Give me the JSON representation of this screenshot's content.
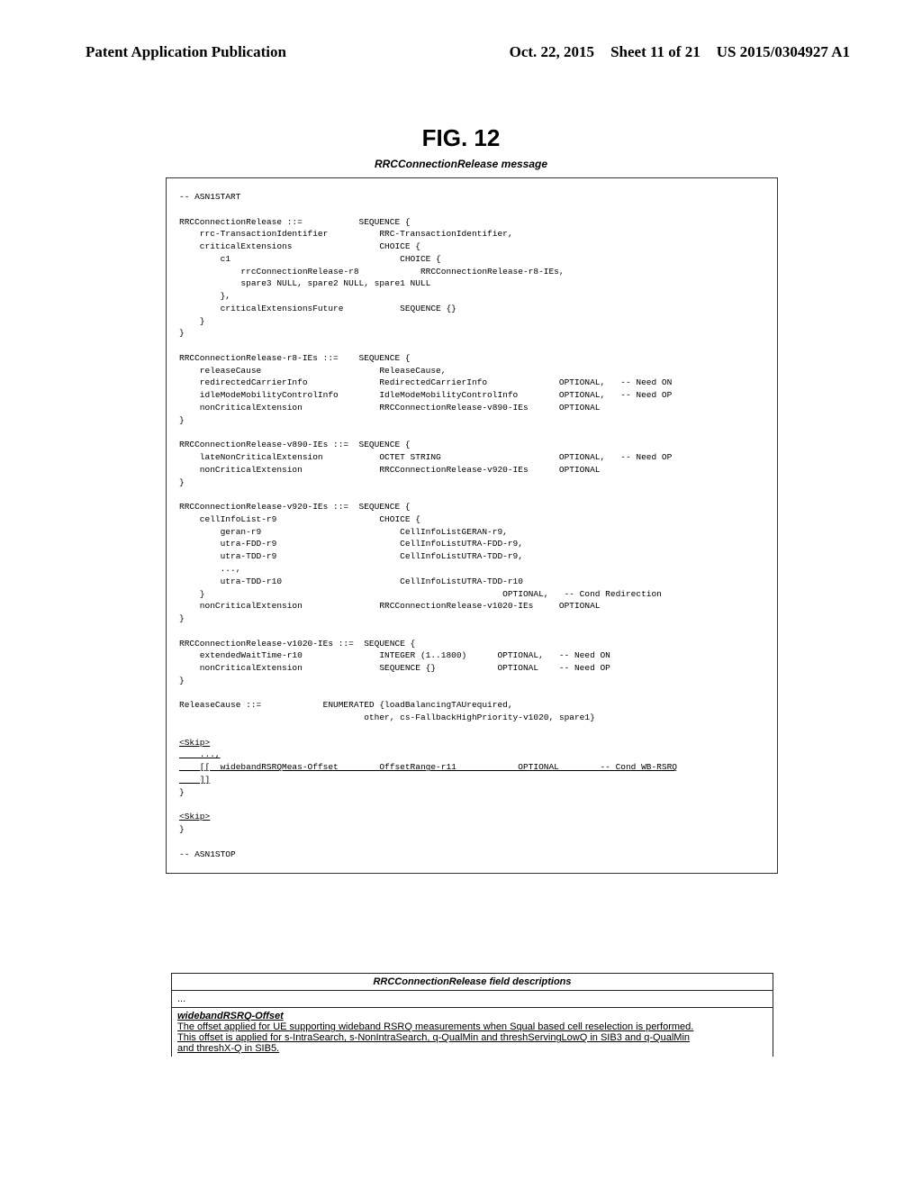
{
  "header": {
    "left": "Patent Application Publication",
    "date": "Oct. 22, 2015",
    "sheet": "Sheet 11 of 21",
    "code": "US 2015/0304927 A1"
  },
  "figure": {
    "title": "FIG. 12",
    "subtitle": "RRCConnectionRelease message"
  },
  "asn": {
    "text": "-- ASN1START\n\nRRCConnectionRelease ::=           SEQUENCE {\n    rrc-TransactionIdentifier          RRC-TransactionIdentifier,\n    criticalExtensions                 CHOICE {\n        c1                                 CHOICE {\n            rrcConnectionRelease-r8            RRCConnectionRelease-r8-IEs,\n            spare3 NULL, spare2 NULL, spare1 NULL\n        },\n        criticalExtensionsFuture           SEQUENCE {}\n    }\n}\n\nRRCConnectionRelease-r8-IEs ::=    SEQUENCE {\n    releaseCause                       ReleaseCause,\n    redirectedCarrierInfo              RedirectedCarrierInfo              OPTIONAL,   -- Need ON\n    idleModeMobilityControlInfo        IdleModeMobilityControlInfo        OPTIONAL,   -- Need OP\n    nonCriticalExtension               RRCConnectionRelease-v890-IEs      OPTIONAL\n}\n\nRRCConnectionRelease-v890-IEs ::=  SEQUENCE {\n    lateNonCriticalExtension           OCTET STRING                       OPTIONAL,   -- Need OP\n    nonCriticalExtension               RRCConnectionRelease-v920-IEs      OPTIONAL\n}\n\nRRCConnectionRelease-v920-IEs ::=  SEQUENCE {\n    cellInfoList-r9                    CHOICE {\n        geran-r9                           CellInfoListGERAN-r9,\n        utra-FDD-r9                        CellInfoListUTRA-FDD-r9,\n        utra-TDD-r9                        CellInfoListUTRA-TDD-r9,\n        ...,\n        utra-TDD-r10                       CellInfoListUTRA-TDD-r10\n    }                                                          OPTIONAL,   -- Cond Redirection\n    nonCriticalExtension               RRCConnectionRelease-v1020-IEs     OPTIONAL\n}\n\nRRCConnectionRelease-v1020-IEs ::=  SEQUENCE {\n    extendedWaitTime-r10               INTEGER (1..1800)      OPTIONAL,   -- Need ON\n    nonCriticalExtension               SEQUENCE {}            OPTIONAL    -- Need OP\n}\n\nReleaseCause ::=            ENUMERATED {loadBalancingTAUrequired,\n                                    other, cs-FallbackHighPriority-v1020, spare1}\n",
    "skip1": "<Skip>",
    "widebandLine": "    ...,\n    [[  widebandRSRQMeas-Offset        OffsetRange-r11            OPTIONAL        -- Cond WB-RSRQ\n    ]]",
    "closeBrace": "}",
    "skip2": "<Skip>",
    "closeBrace2": "}",
    "stop": "-- ASN1STOP"
  },
  "description": {
    "tableTitle": "RRCConnectionRelease field descriptions",
    "ellipsis": "...",
    "fieldName": "widebandRSRQ-Offset",
    "line1": "The offset applied for UE supporting wideband RSRQ measurements when Squal based cell reselection is performed.",
    "line2": "This offset is applied for s-IntraSearch, s-NonIntraSearch, q-QualMin and threshServingLowQ in SIB3 and q-QualMin",
    "line3": "and threshX-Q in SIB5."
  }
}
